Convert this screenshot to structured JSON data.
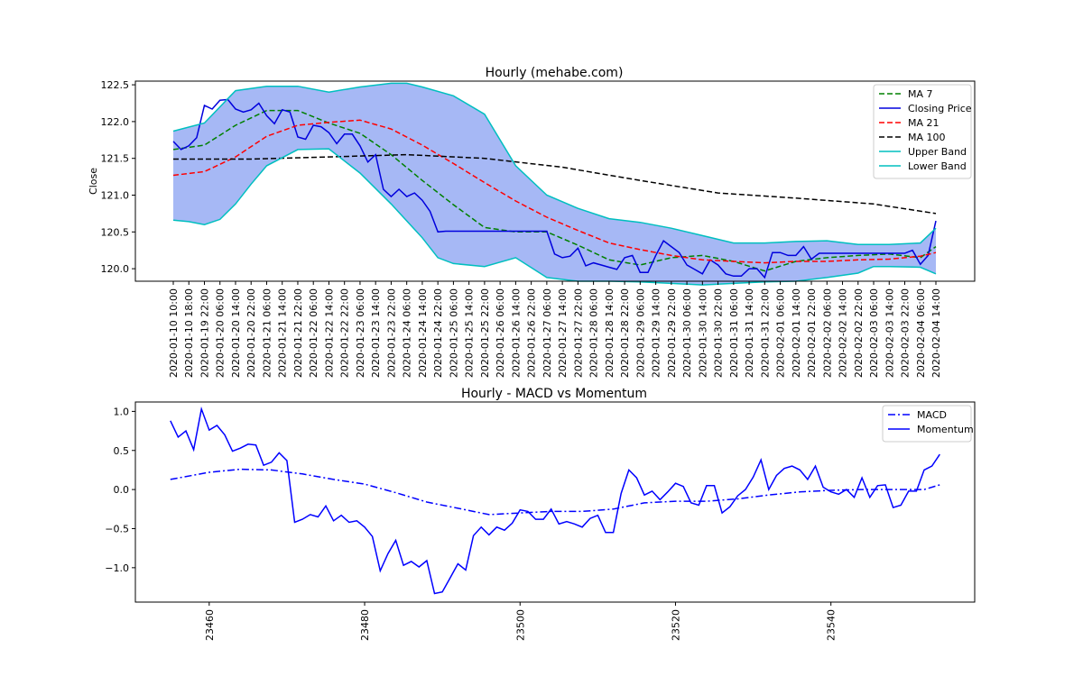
{
  "chart_data": [
    {
      "type": "line",
      "title": "Hourly (mehabe.com)",
      "xlabel": "",
      "ylabel": "Close",
      "ylim": [
        119.83,
        122.55
      ],
      "yticks": [
        120.0,
        120.5,
        121.0,
        121.5,
        122.0,
        122.5
      ],
      "ytick_labels": [
        "120.0",
        "120.5",
        "121.0",
        "121.5",
        "122.0",
        "122.5"
      ],
      "x_tick_labels": [
        "2020-01-10 10:00",
        "2020-01-10 18:00",
        "2020-01-19 22:00",
        "2020-01-20 06:00",
        "2020-01-20 14:00",
        "2020-01-20 22:00",
        "2020-01-21 06:00",
        "2020-01-21 14:00",
        "2020-01-21 22:00",
        "2020-01-22 06:00",
        "2020-01-22 14:00",
        "2020-01-22 22:00",
        "2020-01-23 06:00",
        "2020-01-23 14:00",
        "2020-01-23 22:00",
        "2020-01-24 06:00",
        "2020-01-24 14:00",
        "2020-01-24 22:00",
        "2020-01-25 06:00",
        "2020-01-25 14:00",
        "2020-01-25 22:00",
        "2020-01-26 06:00",
        "2020-01-26 14:00",
        "2020-01-26 22:00",
        "2020-01-27 06:00",
        "2020-01-27 14:00",
        "2020-01-27 22:00",
        "2020-01-28 06:00",
        "2020-01-28 14:00",
        "2020-01-28 22:00",
        "2020-01-29 06:00",
        "2020-01-29 14:00",
        "2020-01-29 22:00",
        "2020-01-30 06:00",
        "2020-01-30 14:00",
        "2020-01-30 22:00",
        "2020-01-31 06:00",
        "2020-01-31 14:00",
        "2020-01-31 22:00",
        "2020-02-01 06:00",
        "2020-02-01 14:00",
        "2020-02-01 22:00",
        "2020-02-02 06:00",
        "2020-02-02 14:00",
        "2020-02-02 22:00",
        "2020-02-03 06:00",
        "2020-02-03 14:00",
        "2020-02-03 22:00",
        "2020-02-04 06:00",
        "2020-02-04 14:00"
      ],
      "x_index_range": [
        0,
        98
      ],
      "band_fill_color": "#a6b8f5",
      "legend_position": "top-right",
      "series": [
        {
          "name": "MA 7",
          "color": "#008000",
          "style": "dashed",
          "x": [
            0,
            4,
            8,
            12,
            16,
            20,
            24,
            28,
            32,
            36,
            40,
            44,
            48,
            52,
            56,
            60,
            64,
            68,
            72,
            76,
            80,
            84,
            88,
            92,
            96,
            98
          ],
          "values": [
            121.62,
            121.68,
            121.95,
            122.15,
            122.15,
            121.98,
            121.84,
            121.55,
            121.2,
            120.87,
            120.56,
            120.5,
            120.5,
            120.32,
            120.12,
            120.05,
            120.15,
            120.18,
            120.1,
            119.97,
            120.1,
            120.15,
            120.18,
            120.2,
            120.15,
            120.3
          ]
        },
        {
          "name": "Closing Price",
          "color": "#0000dd",
          "style": "solid",
          "x": [
            0,
            1,
            2,
            3,
            4,
            5,
            6,
            7,
            8,
            9,
            10,
            11,
            12,
            13,
            14,
            15,
            16,
            17,
            18,
            19,
            20,
            21,
            22,
            23,
            24,
            25,
            26,
            27,
            28,
            29,
            30,
            31,
            32,
            33,
            34,
            35,
            36,
            37,
            38,
            39,
            40,
            41,
            42,
            43,
            44,
            45,
            46,
            47,
            48,
            49,
            50,
            51,
            52,
            53,
            54,
            55,
            56,
            57,
            58,
            59,
            60,
            61,
            62,
            63,
            64,
            65,
            66,
            67,
            68,
            69,
            70,
            71,
            72,
            73,
            74,
            75,
            76,
            77,
            78,
            79,
            80,
            81,
            82,
            83,
            84,
            85,
            86,
            87,
            88,
            89,
            90,
            91,
            92,
            93,
            94,
            95,
            96,
            97,
            98
          ],
          "values": [
            121.73,
            121.62,
            121.67,
            121.78,
            122.22,
            122.17,
            122.29,
            122.3,
            122.17,
            122.13,
            122.16,
            122.25,
            122.08,
            121.97,
            122.16,
            122.13,
            121.79,
            121.76,
            121.95,
            121.93,
            121.85,
            121.7,
            121.83,
            121.83,
            121.67,
            121.45,
            121.55,
            121.08,
            120.98,
            121.08,
            120.98,
            121.03,
            120.93,
            120.78,
            120.5,
            120.51,
            120.51,
            120.51,
            120.51,
            120.51,
            120.51,
            120.51,
            120.51,
            120.51,
            120.51,
            120.51,
            120.51,
            120.51,
            120.51,
            120.2,
            120.15,
            120.17,
            120.28,
            120.04,
            120.08,
            120.05,
            120.02,
            119.99,
            120.15,
            120.18,
            119.95,
            119.95,
            120.18,
            120.38,
            120.3,
            120.22,
            120.05,
            119.99,
            119.93,
            120.12,
            120.05,
            119.93,
            119.9,
            119.9,
            120.0,
            120.0,
            119.88,
            120.22,
            120.22,
            120.18,
            120.18,
            120.3,
            120.13,
            120.21,
            120.21,
            120.21,
            120.21,
            120.21,
            120.21,
            120.21,
            120.21,
            120.21,
            120.21,
            120.21,
            120.21,
            120.25,
            120.06,
            120.18,
            120.65
          ]
        },
        {
          "name": "MA 21",
          "color": "#ff0000",
          "style": "dashed",
          "x": [
            0,
            4,
            8,
            12,
            16,
            20,
            24,
            28,
            32,
            36,
            40,
            44,
            48,
            52,
            56,
            60,
            64,
            68,
            72,
            76,
            80,
            84,
            88,
            92,
            96,
            98
          ],
          "values": [
            121.27,
            121.32,
            121.52,
            121.8,
            121.95,
            121.99,
            122.02,
            121.9,
            121.68,
            121.43,
            121.17,
            120.92,
            120.7,
            120.52,
            120.35,
            120.26,
            120.18,
            120.12,
            120.1,
            120.08,
            120.1,
            120.1,
            120.12,
            120.13,
            120.17,
            120.22
          ]
        },
        {
          "name": "MA 100",
          "color": "#000000",
          "style": "dashed",
          "x": [
            0,
            10,
            20,
            30,
            40,
            50,
            60,
            70,
            80,
            90,
            98
          ],
          "values": [
            121.49,
            121.49,
            121.52,
            121.55,
            121.5,
            121.38,
            121.2,
            121.03,
            120.96,
            120.88,
            120.75
          ]
        },
        {
          "name": "Upper Band",
          "color": "#00bfbf",
          "style": "solid",
          "x": [
            0,
            4,
            8,
            12,
            16,
            20,
            24,
            28,
            30,
            32,
            36,
            40,
            44,
            48,
            52,
            56,
            60,
            64,
            68,
            72,
            76,
            80,
            84,
            88,
            92,
            96,
            98
          ],
          "values": [
            121.87,
            121.98,
            122.42,
            122.48,
            122.48,
            122.4,
            122.47,
            122.52,
            122.52,
            122.47,
            122.35,
            122.1,
            121.4,
            121.0,
            120.82,
            120.68,
            120.63,
            120.55,
            120.45,
            120.35,
            120.35,
            120.37,
            120.38,
            120.33,
            120.33,
            120.35,
            120.55
          ]
        },
        {
          "name": "Lower Band",
          "color": "#00bfbf",
          "style": "solid",
          "x": [
            0,
            2,
            4,
            6,
            8,
            10,
            12,
            16,
            20,
            24,
            28,
            32,
            34,
            36,
            40,
            44,
            48,
            52,
            56,
            60,
            64,
            68,
            72,
            76,
            80,
            84,
            88,
            90,
            92,
            96,
            98
          ],
          "values": [
            120.66,
            120.64,
            120.6,
            120.67,
            120.88,
            121.15,
            121.4,
            121.62,
            121.63,
            121.3,
            120.88,
            120.42,
            120.15,
            120.07,
            120.03,
            120.15,
            119.88,
            119.83,
            119.83,
            119.82,
            119.8,
            119.78,
            119.8,
            119.82,
            119.83,
            119.88,
            119.94,
            120.03,
            120.03,
            120.02,
            119.93
          ]
        }
      ]
    },
    {
      "type": "line",
      "title": "Hourly - MACD vs Momentum",
      "xlabel": "",
      "ylabel": "",
      "xlim": [
        23450.5,
        23558.5
      ],
      "ylim": [
        -1.44,
        1.12
      ],
      "xticks": [
        23460,
        23480,
        23500,
        23520,
        23540
      ],
      "xtick_labels": [
        "23460",
        "23480",
        "23500",
        "23520",
        "23540"
      ],
      "yticks": [
        -1.0,
        -0.5,
        0.0,
        0.5,
        1.0
      ],
      "ytick_labels": [
        "−1.0",
        "−0.5",
        "0.0",
        "0.5",
        "1.0"
      ],
      "legend_position": "top-right",
      "series": [
        {
          "name": "MACD",
          "color": "#0000ff",
          "style": "dashdot",
          "x": [
            23455,
            23460,
            23464,
            23468,
            23472,
            23476,
            23480,
            23484,
            23488,
            23492,
            23496,
            23500,
            23504,
            23508,
            23512,
            23516,
            23520,
            23524,
            23528,
            23532,
            23536,
            23540,
            23544,
            23548,
            23552,
            23554
          ],
          "values": [
            0.13,
            0.22,
            0.26,
            0.25,
            0.2,
            0.13,
            0.07,
            -0.04,
            -0.16,
            -0.24,
            -0.32,
            -0.3,
            -0.28,
            -0.28,
            -0.25,
            -0.17,
            -0.15,
            -0.15,
            -0.12,
            -0.07,
            -0.03,
            -0.01,
            0.0,
            0.0,
            0.0,
            0.06
          ]
        },
        {
          "name": "Momentum",
          "color": "#0000ff",
          "style": "solid",
          "x": [
            23455,
            23456,
            23457,
            23458,
            23459,
            23460,
            23461,
            23462,
            23463,
            23464,
            23465,
            23466,
            23467,
            23468,
            23469,
            23470,
            23471,
            23472,
            23473,
            23474,
            23475,
            23476,
            23477,
            23478,
            23479,
            23480,
            23481,
            23482,
            23483,
            23484,
            23485,
            23486,
            23487,
            23488,
            23489,
            23490,
            23491,
            23492,
            23493,
            23494,
            23495,
            23496,
            23497,
            23498,
            23499,
            23500,
            23501,
            23502,
            23503,
            23504,
            23505,
            23506,
            23507,
            23508,
            23509,
            23510,
            23511,
            23512,
            23513,
            23514,
            23515,
            23516,
            23517,
            23518,
            23519,
            23520,
            23521,
            23522,
            23523,
            23524,
            23525,
            23526,
            23527,
            23528,
            23529,
            23530,
            23531,
            23532,
            23533,
            23534,
            23535,
            23536,
            23537,
            23538,
            23539,
            23540,
            23541,
            23542,
            23543,
            23544,
            23545,
            23546,
            23547,
            23548,
            23549,
            23550,
            23551,
            23552,
            23553,
            23554
          ],
          "values": [
            0.88,
            0.67,
            0.75,
            0.51,
            1.03,
            0.76,
            0.82,
            0.7,
            0.49,
            0.53,
            0.58,
            0.57,
            0.31,
            0.35,
            0.47,
            0.37,
            -0.42,
            -0.38,
            -0.32,
            -0.35,
            -0.21,
            -0.4,
            -0.33,
            -0.42,
            -0.4,
            -0.48,
            -0.6,
            -1.04,
            -0.82,
            -0.65,
            -0.97,
            -0.92,
            -0.99,
            -0.91,
            -1.33,
            -1.31,
            -1.13,
            -0.95,
            -1.03,
            -0.59,
            -0.48,
            -0.58,
            -0.48,
            -0.52,
            -0.43,
            -0.26,
            -0.28,
            -0.38,
            -0.38,
            -0.25,
            -0.44,
            -0.41,
            -0.44,
            -0.48,
            -0.37,
            -0.33,
            -0.55,
            -0.55,
            -0.05,
            0.25,
            0.15,
            -0.07,
            -0.02,
            -0.13,
            -0.03,
            0.08,
            0.04,
            -0.17,
            -0.2,
            0.05,
            0.05,
            -0.3,
            -0.22,
            -0.08,
            0.0,
            0.16,
            0.38,
            0.0,
            0.18,
            0.27,
            0.3,
            0.25,
            0.13,
            0.3,
            0.03,
            -0.03,
            -0.06,
            0.0,
            -0.1,
            0.15,
            -0.1,
            0.05,
            0.06,
            -0.23,
            -0.2,
            -0.02,
            -0.02,
            0.25,
            0.3,
            0.45
          ]
        }
      ]
    }
  ]
}
